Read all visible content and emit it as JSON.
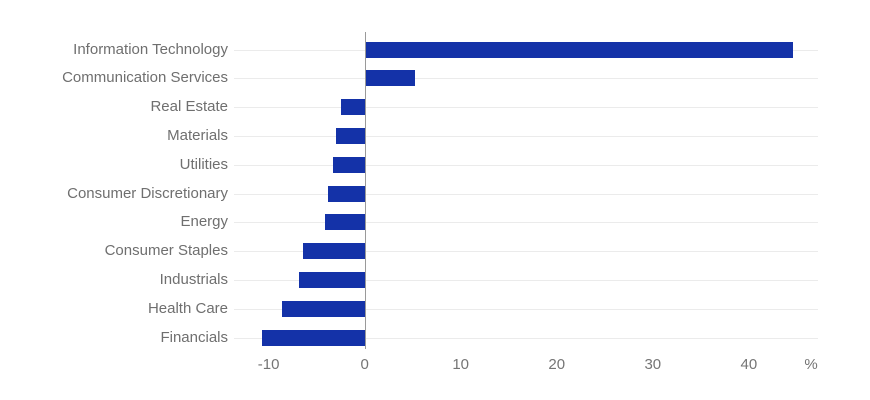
{
  "chart_data": {
    "type": "bar",
    "orientation": "horizontal",
    "title": "",
    "xlabel": "",
    "ylabel": "",
    "unit": "%",
    "categories": [
      "Information Technology",
      "Communication Services",
      "Real Estate",
      "Materials",
      "Utilities",
      "Consumer Discretionary",
      "Energy",
      "Consumer Staples",
      "Industrials",
      "Health Care",
      "Financials"
    ],
    "values": [
      44.6,
      5.2,
      -2.5,
      -3.0,
      -3.3,
      -3.8,
      -4.1,
      -6.4,
      -6.8,
      -8.6,
      -10.7
    ],
    "x_ticks": [
      -10,
      0,
      10,
      20,
      30,
      40
    ],
    "xlim": [
      -13.6,
      47.2
    ],
    "grid": "horizontal category gridlines only",
    "legend": "none",
    "colors": {
      "bar": "#1432a8",
      "category_label": "#6f6f6f",
      "tick_label": "#757575",
      "gridline": "#ebebeb",
      "zero_axis_line": "#9a9a9a"
    }
  }
}
